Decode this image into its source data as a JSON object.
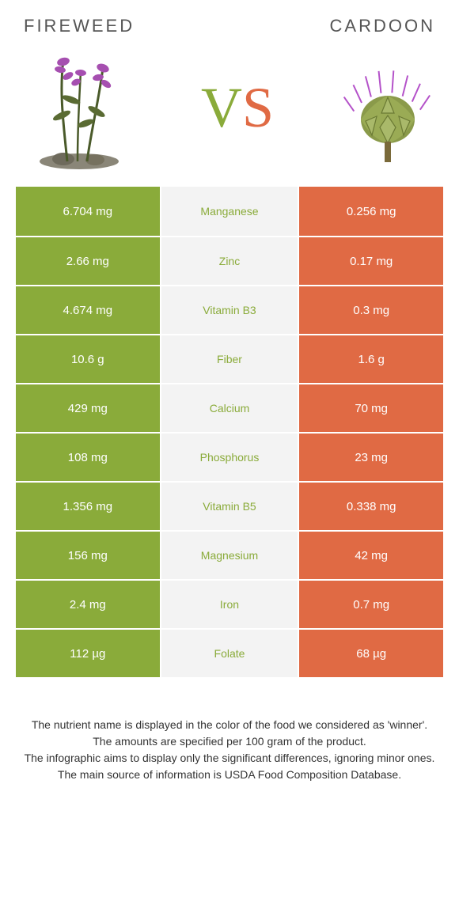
{
  "header": {
    "left_title": "FIREWEED",
    "right_title": "CARDOON",
    "vs_v": "V",
    "vs_s": "S"
  },
  "colors": {
    "left_bg": "#8aab3a",
    "right_bg": "#e06a44",
    "mid_bg": "#f3f3f3",
    "mid_text_winner_left": "#8aab3a",
    "mid_text_winner_right": "#e06a44"
  },
  "rows": [
    {
      "left": "6.704 mg",
      "label": "Manganese",
      "right": "0.256 mg",
      "winner": "left"
    },
    {
      "left": "2.66 mg",
      "label": "Zinc",
      "right": "0.17 mg",
      "winner": "left"
    },
    {
      "left": "4.674 mg",
      "label": "Vitamin B3",
      "right": "0.3 mg",
      "winner": "left"
    },
    {
      "left": "10.6 g",
      "label": "Fiber",
      "right": "1.6 g",
      "winner": "left"
    },
    {
      "left": "429 mg",
      "label": "Calcium",
      "right": "70 mg",
      "winner": "left"
    },
    {
      "left": "108 mg",
      "label": "Phosphorus",
      "right": "23 mg",
      "winner": "left"
    },
    {
      "left": "1.356 mg",
      "label": "Vitamin B5",
      "right": "0.338 mg",
      "winner": "left"
    },
    {
      "left": "156 mg",
      "label": "Magnesium",
      "right": "42 mg",
      "winner": "left"
    },
    {
      "left": "2.4 mg",
      "label": "Iron",
      "right": "0.7 mg",
      "winner": "left"
    },
    {
      "left": "112 µg",
      "label": "Folate",
      "right": "68 µg",
      "winner": "left"
    }
  ],
  "footer": {
    "line1": "The nutrient name is displayed in the color of the food we considered as 'winner'.",
    "line2": "The amounts are specified per 100 gram of the product.",
    "line3": "The infographic aims to display only the significant differences, ignoring minor ones.",
    "line4": "The main source of information is USDA Food Composition Database."
  }
}
